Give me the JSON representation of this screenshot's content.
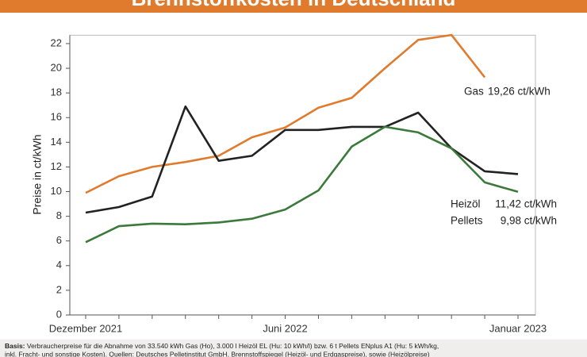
{
  "chart_data": {
    "type": "line",
    "title": "Brennstoffkosten in Deutschland",
    "y_label": "Preise in ct/kWh",
    "categories": [
      "Dezember 2021",
      null,
      null,
      null,
      null,
      null,
      "Juni 2022",
      null,
      null,
      null,
      null,
      null,
      null,
      "Januar 2023"
    ],
    "series": [
      {
        "name": "Gas",
        "color": "#e07b2e",
        "values": [
          9.9,
          11.25,
          12.0,
          12.4,
          12.9,
          14.4,
          15.2,
          16.8,
          17.6,
          20.0,
          22.3,
          22.7,
          19.26,
          null
        ],
        "value_labels": [
          null,
          null,
          null,
          null,
          null,
          null,
          null,
          null,
          null,
          null,
          null,
          null,
          "19,26 ct/kWh",
          null
        ]
      },
      {
        "name": "Heizöl",
        "color": "#222222",
        "values": [
          8.3,
          8.75,
          9.6,
          16.9,
          12.5,
          12.9,
          15.0,
          15.0,
          15.25,
          15.25,
          16.4,
          13.5,
          11.65,
          11.42
        ],
        "value_labels": [
          null,
          null,
          null,
          null,
          null,
          null,
          null,
          null,
          null,
          null,
          null,
          null,
          null,
          "11,42 ct/kWh"
        ]
      },
      {
        "name": "Pellets",
        "color": "#3b7a3a",
        "values": [
          5.9,
          7.2,
          7.4,
          7.35,
          7.5,
          7.8,
          8.55,
          10.1,
          13.65,
          15.25,
          14.8,
          13.5,
          10.75,
          9.98
        ],
        "value_labels": [
          null,
          null,
          null,
          null,
          null,
          null,
          null,
          null,
          null,
          null,
          null,
          null,
          null,
          "9,98 ct/kWh"
        ]
      }
    ],
    "ylim": [
      0,
      23
    ],
    "yticks": [
      0,
      2,
      4,
      6,
      8,
      10,
      12,
      14,
      16,
      18,
      20,
      22
    ],
    "grid": false,
    "note_label": "Basis:",
    "note": "Verbraucherpreise für die Abnahme von 33.540 kWh Gas (Ho), 3.000 l Heizöl EL (Hu: 10 kWh/l) bzw. 6 t Pellets ENplus A1 (Hu: 5 kWh/kg,",
    "note_2": "inkl. Fracht- und sonstige Kosten). Quellen: Deutsches Pelletinstitut GmbH, Brennstoffspiegel (Heizöl- und Erdgaspreise), sowie (Heizölpreise)"
  }
}
